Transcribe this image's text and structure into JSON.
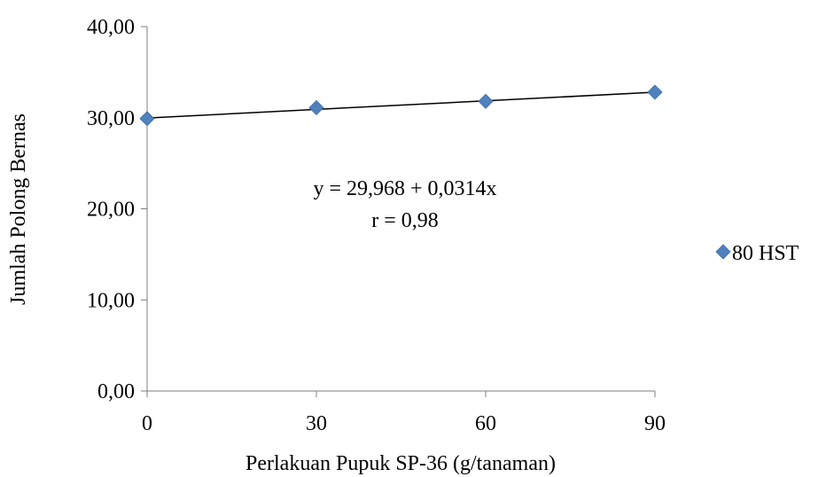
{
  "chart_data": {
    "type": "scatter",
    "title": "",
    "xlabel": "Perlakuan Pupuk SP-36 (g/tanaman)",
    "ylabel": "Jumlah Polong Bernas",
    "x_ticks": [
      "0",
      "30",
      "60",
      "90"
    ],
    "y_ticks": [
      "0,00",
      "10,00",
      "20,00",
      "30,00",
      "40,00"
    ],
    "xlim": [
      0,
      90
    ],
    "ylim": [
      0,
      40
    ],
    "grid": false,
    "legend_position": "right",
    "series": [
      {
        "name": "80 HST",
        "marker": "diamond",
        "color": "#4f81bd",
        "x": [
          0,
          30,
          60,
          90
        ],
        "y": [
          29.9,
          31.1,
          31.8,
          32.8
        ]
      }
    ],
    "trendline": {
      "intercept": 29.968,
      "slope": 0.0314,
      "color": "#000000"
    },
    "annotations": [
      "y = 29,968 + 0,0314x",
      "r = 0,98"
    ]
  }
}
